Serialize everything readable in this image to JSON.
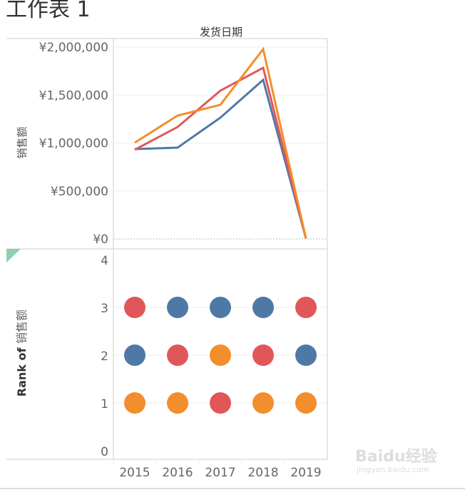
{
  "title": "工作表 1",
  "watermark": "Baidu经验 jingyan.baidu.com",
  "chart_data": [
    {
      "type": "line",
      "column_header": "发货日期",
      "ylabel": "销售额",
      "x": [
        "2015",
        "2016",
        "2017",
        "2018",
        "2019"
      ],
      "ylim": [
        0,
        2000000
      ],
      "yticks": [
        0,
        500000,
        1000000,
        1500000,
        2000000
      ],
      "ytick_labels": [
        "¥0",
        "¥500,000",
        "¥1,000,000",
        "¥1,500,000",
        "¥2,000,000"
      ],
      "series": [
        {
          "name": "blue",
          "color": "#4e79a7",
          "values": [
            937000,
            952000,
            1264000,
            1658000,
            5000
          ]
        },
        {
          "name": "red",
          "color": "#e15759",
          "values": [
            930000,
            1167000,
            1546000,
            1784000,
            5000
          ]
        },
        {
          "name": "orange",
          "color": "#f28e2b",
          "values": [
            1004000,
            1286000,
            1398000,
            1978000,
            5000
          ]
        }
      ]
    },
    {
      "type": "scatter",
      "ylabel_bold": "Rank of",
      "ylabel": "销售额",
      "x": [
        "2015",
        "2016",
        "2017",
        "2018",
        "2019"
      ],
      "ylim": [
        0,
        4
      ],
      "yticks": [
        0,
        1,
        2,
        3,
        4
      ],
      "ytick_labels": [
        "0",
        "1",
        "2",
        "3",
        "4"
      ],
      "series": [
        {
          "name": "blue",
          "color": "#4e79a7",
          "values": [
            2,
            3,
            3,
            3,
            2
          ]
        },
        {
          "name": "red",
          "color": "#e15759",
          "values": [
            3,
            2,
            1,
            2,
            3
          ]
        },
        {
          "name": "orange",
          "color": "#f28e2b",
          "values": [
            1,
            1,
            2,
            1,
            1
          ]
        }
      ]
    }
  ]
}
